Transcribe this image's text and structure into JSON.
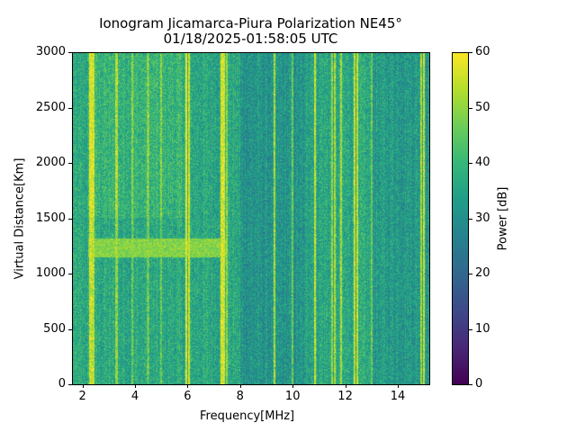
{
  "chart_data": {
    "type": "heatmap",
    "title": "Ionogram Jicamarca-Piura Polarization NE45°",
    "subtitle": "01/18/2025-01:58:05 UTC",
    "xlabel": "Frequency[MHz]",
    "ylabel": "Virtual Distance[Km]",
    "xlim": [
      1.6,
      15.2
    ],
    "ylim": [
      0,
      3000
    ],
    "xticks": [
      2,
      4,
      6,
      8,
      10,
      12,
      14
    ],
    "yticks": [
      0,
      500,
      1000,
      1500,
      2000,
      2500,
      3000
    ],
    "colorbar": {
      "label": "Power [dB]",
      "range": [
        0,
        60
      ],
      "ticks": [
        0,
        10,
        20,
        30,
        40,
        50,
        60
      ],
      "colormap": "viridis"
    },
    "background_power_db": 36,
    "interference_lines_mhz": [
      {
        "f": 2.3,
        "db": 55
      },
      {
        "f": 2.4,
        "db": 54
      },
      {
        "f": 3.3,
        "db": 50
      },
      {
        "f": 3.9,
        "db": 46
      },
      {
        "f": 4.5,
        "db": 46
      },
      {
        "f": 5.0,
        "db": 46
      },
      {
        "f": 5.95,
        "db": 58
      },
      {
        "f": 6.05,
        "db": 56
      },
      {
        "f": 7.3,
        "db": 57
      },
      {
        "f": 7.4,
        "db": 57
      },
      {
        "f": 7.5,
        "db": 50
      },
      {
        "f": 9.3,
        "db": 52
      },
      {
        "f": 10.0,
        "db": 46
      },
      {
        "f": 10.85,
        "db": 55
      },
      {
        "f": 11.5,
        "db": 50
      },
      {
        "f": 11.6,
        "db": 52
      },
      {
        "f": 11.85,
        "db": 52
      },
      {
        "f": 12.35,
        "db": 55
      },
      {
        "f": 12.45,
        "db": 55
      },
      {
        "f": 13.0,
        "db": 46
      },
      {
        "f": 14.9,
        "db": 52
      },
      {
        "f": 15.0,
        "db": 55
      }
    ],
    "echo_trace": {
      "f_range_mhz": [
        2.2,
        7.5
      ],
      "distance_km": [
        1150,
        1320
      ],
      "db": 50
    }
  }
}
